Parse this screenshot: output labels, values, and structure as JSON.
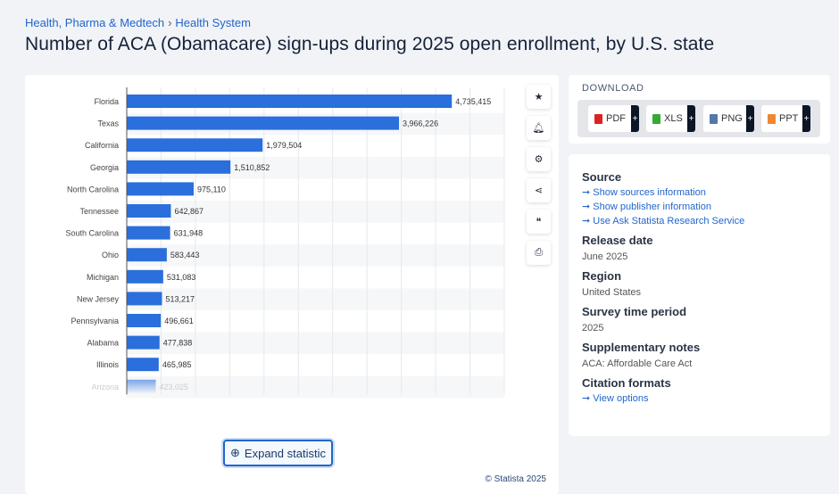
{
  "breadcrumb": [
    "Health, Pharma & Medtech",
    "Health System"
  ],
  "title": "Number of ACA (Obamacare) sign-ups during 2025 open enrollment, by U.S. state",
  "chart_data": {
    "type": "bar",
    "orientation": "horizontal",
    "categories": [
      "Florida",
      "Texas",
      "California",
      "Georgia",
      "North Carolina",
      "Tennessee",
      "South Carolina",
      "Ohio",
      "Michigan",
      "New Jersey",
      "Pennsylvania",
      "Alabama",
      "Illinois",
      "Arizona"
    ],
    "values": [
      4735415,
      3966226,
      1979504,
      1510852,
      975110,
      642867,
      631948,
      583443,
      531083,
      513217,
      496661,
      477838,
      465985,
      423025
    ],
    "value_labels": [
      "4,735,415",
      "3,966,226",
      "1,979,504",
      "1,510,852",
      "975,110",
      "642,867",
      "631,948",
      "583,443",
      "531,083",
      "513,217",
      "496,661",
      "477,838",
      "465,985",
      "423,025"
    ],
    "xlim": [
      0,
      5500000
    ],
    "grid": true,
    "bar_color": "#2a6fdb"
  },
  "tools": [
    "star-icon",
    "bell-icon",
    "gear-icon",
    "share-icon",
    "quote-icon",
    "print-icon"
  ],
  "expand_label": "Expand statistic",
  "copyright": "© Statista 2025",
  "download": {
    "label": "DOWNLOAD",
    "formats": [
      {
        "label": "PDF",
        "color": "#d22"
      },
      {
        "label": "XLS",
        "color": "#3a3"
      },
      {
        "label": "PNG",
        "color": "#57a"
      },
      {
        "label": "PPT",
        "color": "#e83"
      }
    ]
  },
  "info": {
    "source_h": "Source",
    "source_links": [
      "Show sources information",
      "Show publisher information",
      "Use Ask Statista Research Service"
    ],
    "release_h": "Release date",
    "release": "June 2025",
    "region_h": "Region",
    "region": "United States",
    "survey_h": "Survey time period",
    "survey": "2025",
    "notes_h": "Supplementary notes",
    "notes": "ACA: Affordable Care Act",
    "cite_h": "Citation formats",
    "cite_link": "View options"
  }
}
